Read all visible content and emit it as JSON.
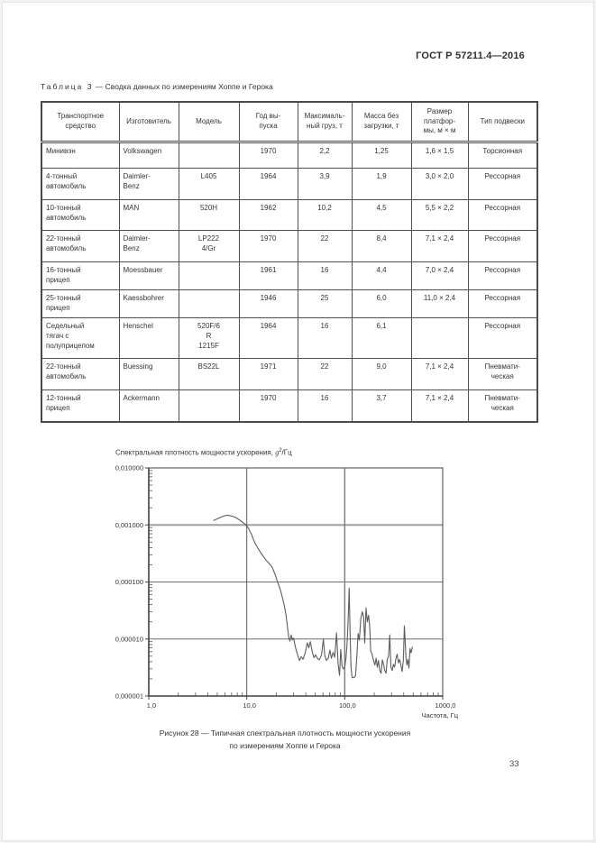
{
  "page": {
    "header": "ГОСТ Р 57211.4—2016",
    "page_number": "33"
  },
  "table": {
    "title_label": "Таблица 3",
    "title_rest": "— Сводка данных по измерениям Хоппе и Герока",
    "columns": [
      "Транспортное\nсредство",
      "Изготовитель",
      "Модель",
      "Год вы-\nпуска",
      "Максималь-\nный груз, т",
      "Масса без\nзагрузки, т",
      "Размер\nплатфор-\nмы, м × м",
      "Тип подвески"
    ],
    "rows": [
      [
        "Минивэн",
        "Volkswagen",
        "",
        "1970",
        "2,2",
        "1,25",
        "1,6 × 1,5",
        "Торсионная"
      ],
      [
        "4-тонный\nавтомобиль",
        "Daimler-\nBenz",
        "L405",
        "1964",
        "3,9",
        "1,9",
        "3,0 × 2,0",
        "Рессорная"
      ],
      [
        "10-тонный\nавтомобиль",
        "MAN",
        "520H",
        "1962",
        "10,2",
        "4,5",
        "5,5 × 2,2",
        "Рессорная"
      ],
      [
        "22-тонный\nавтомобиль",
        "Daimler-\nBenz",
        "LP222\n4/Gr",
        "1970",
        "22",
        "8,4",
        "7,1 × 2,4",
        "Рессорная"
      ],
      [
        "16-тонный\nприцеп",
        "Moessbauer",
        "",
        "1961",
        "16",
        "4,4",
        "7,0 × 2,4",
        "Рессорная"
      ],
      [
        "25-тонный\nприцеп",
        "Kaessbohrer",
        "",
        "1946",
        "25",
        "6,0",
        "11,0 × 2,4",
        "Рессорная"
      ],
      [
        "Седельный\nтягач с\nполуприцепом",
        "Henschel",
        "520F/6\nR\n1215F",
        "1964",
        "16",
        "6,1",
        "",
        "Рессорная"
      ],
      [
        "22-тонный\nавтомобиль",
        "Buessing",
        "BS22L",
        "1971",
        "22",
        "9,0",
        "7,1 × 2,4",
        "Пневмати-\nческая"
      ],
      [
        "12-тонный\nприцеп",
        "Ackermann",
        "",
        "1970",
        "16",
        "3,7",
        "7,1 × 2,4",
        "Пневмати-\nческая"
      ]
    ]
  },
  "chart_data": {
    "type": "line",
    "title": "Спектральная плотность мощности ускорения, g2/Гц",
    "title_parts": {
      "prefix": "Спектральная плотность мощности ускорения, ",
      "var": "g",
      "sup": "2",
      "suffix": "/Гц"
    },
    "xlabel": "Частота, Гц",
    "ylabel": "",
    "x_scale": "log",
    "y_scale": "log",
    "xlim": [
      1,
      1000
    ],
    "ylim": [
      1e-06,
      0.01
    ],
    "grid": true,
    "x_ticks": [
      {
        "label": "1,0",
        "value": 1
      },
      {
        "label": "10,0",
        "value": 10
      },
      {
        "label": "100,0",
        "value": 100
      },
      {
        "label": "1000,0",
        "value": 1000
      }
    ],
    "y_ticks": [
      {
        "label": "0,010000",
        "value": 0.01
      },
      {
        "label": "0,001000",
        "value": 0.001
      },
      {
        "label": "0,000100",
        "value": 0.0001
      },
      {
        "label": "0,000010",
        "value": 1e-05
      },
      {
        "label": "0,000001",
        "value": 1e-06
      }
    ],
    "series": [
      {
        "name": "Спектральная плотность мощности ускорения",
        "points": [
          [
            4.6,
            0.0012
          ],
          [
            5.0,
            0.00128
          ],
          [
            5.5,
            0.00138
          ],
          [
            6.0,
            0.00146
          ],
          [
            6.5,
            0.00148
          ],
          [
            7.0,
            0.00143
          ],
          [
            7.6,
            0.00137
          ],
          [
            8.2,
            0.00126
          ],
          [
            9.0,
            0.00113
          ],
          [
            9.6,
            0.00103
          ],
          [
            10.0,
            0.00096
          ],
          [
            10.4,
            0.00088
          ],
          [
            10.8,
            0.00077
          ],
          [
            11.2,
            0.00068
          ],
          [
            11.5,
            0.0006
          ],
          [
            11.9,
            0.00052
          ],
          [
            12.3,
            0.00046
          ],
          [
            12.8,
            0.00041
          ],
          [
            13.4,
            0.00036
          ],
          [
            14.2,
            0.00031
          ],
          [
            15.0,
            0.00027
          ],
          [
            15.8,
            0.00024
          ],
          [
            16.6,
            0.00022
          ],
          [
            17.4,
            0.0002
          ],
          [
            18.2,
            0.00018
          ],
          [
            19.0,
            0.00015
          ],
          [
            19.8,
            0.000125
          ],
          [
            20.6,
            0.0001
          ],
          [
            21.5,
            8.2e-05
          ],
          [
            22.4,
            6.6e-05
          ],
          [
            23.3,
            5e-05
          ],
          [
            24.2,
            3.8e-05
          ],
          [
            25.1,
            2.7e-05
          ],
          [
            26.0,
            1.65e-05
          ],
          [
            26.8,
            1.08e-05
          ],
          [
            27.6,
            9.2e-06
          ],
          [
            28.4,
            1.18e-05
          ],
          [
            29.2,
            9.6e-06
          ],
          [
            30.0,
            1.04e-05
          ],
          [
            31.5,
            7e-06
          ],
          [
            33.0,
            5.3e-06
          ],
          [
            34.5,
            4.2e-06
          ],
          [
            36.0,
            4.9e-06
          ],
          [
            37.5,
            4.4e-06
          ],
          [
            39.5,
            5.7e-06
          ],
          [
            41.5,
            8.6e-06
          ],
          [
            43.0,
            7e-06
          ],
          [
            44.5,
            9e-06
          ],
          [
            46.5,
            6.1e-06
          ],
          [
            48.5,
            4.7e-06
          ],
          [
            50.5,
            5.3e-06
          ],
          [
            52.5,
            4.6e-06
          ],
          [
            55.0,
            4.3e-06
          ],
          [
            58.0,
            5.3e-06
          ],
          [
            60.5,
            1e-05
          ],
          [
            62.5,
            5.2e-06
          ],
          [
            65.0,
            4.2e-06
          ],
          [
            68.0,
            4.6e-06
          ],
          [
            70.5,
            6.4e-06
          ],
          [
            73.0,
            4.6e-06
          ],
          [
            76.0,
            5.8e-06
          ],
          [
            79.0,
            4.8e-06
          ],
          [
            82.5,
            1.28e-05
          ],
          [
            85.5,
            3.7e-06
          ],
          [
            88.5,
            2.3e-06
          ],
          [
            91.0,
            6.6e-06
          ],
          [
            94.0,
            3.3e-06
          ],
          [
            97.0,
            3e-06
          ],
          [
            100.0,
            3.2e-06
          ],
          [
            103.0,
            4.6e-06
          ],
          [
            106.0,
            9e-06
          ],
          [
            109.0,
            2.9e-05
          ],
          [
            111.0,
            7.8e-05
          ],
          [
            113.5,
            1.2e-05
          ],
          [
            116.0,
            3.1e-06
          ],
          [
            119.0,
            2.1e-06
          ],
          [
            124.0,
            2.1e-06
          ],
          [
            129.0,
            2.3e-06
          ],
          [
            133.0,
            5e-06
          ],
          [
            137.0,
            1.25e-05
          ],
          [
            141.0,
            9.6e-06
          ],
          [
            146.0,
            2.3e-05
          ],
          [
            151.0,
            3e-05
          ],
          [
            156.0,
            2.4e-05
          ],
          [
            160.0,
            8.5e-06
          ],
          [
            165.0,
            3.5e-05
          ],
          [
            170.0,
            2e-05
          ],
          [
            175.0,
            2.6e-05
          ],
          [
            180.0,
            1.6e-05
          ],
          [
            184.0,
            6.2e-06
          ],
          [
            190.0,
            5.4e-06
          ],
          [
            197.0,
            4.2e-06
          ],
          [
            203.0,
            3.5e-06
          ],
          [
            209.0,
            4.6e-06
          ],
          [
            215.0,
            3.2e-06
          ],
          [
            221.0,
            4.2e-06
          ],
          [
            228.0,
            2.8e-06
          ],
          [
            235.0,
            2.5e-06
          ],
          [
            242.0,
            4.3e-06
          ],
          [
            249.0,
            3.6e-06
          ],
          [
            256.0,
            2.8e-06
          ],
          [
            264.0,
            2.5e-06
          ],
          [
            272.0,
            4.5e-06
          ],
          [
            280.0,
            4.9e-06
          ],
          [
            288.0,
            1.18e-05
          ],
          [
            296.0,
            3.2e-06
          ],
          [
            305.0,
            2.8e-06
          ],
          [
            314.0,
            3.6e-06
          ],
          [
            323.0,
            3.2e-06
          ],
          [
            333.0,
            4.6e-06
          ],
          [
            343.0,
            5.4e-06
          ],
          [
            353.0,
            3.8e-06
          ],
          [
            364.0,
            4.4e-06
          ],
          [
            375.0,
            3.4e-06
          ],
          [
            386.0,
            2.7e-06
          ],
          [
            397.0,
            4.4e-06
          ],
          [
            406.0,
            1.7e-05
          ],
          [
            413.0,
            1e-05
          ],
          [
            421.0,
            4.8e-06
          ],
          [
            431.0,
            3.5e-06
          ],
          [
            441.0,
            4.4e-06
          ],
          [
            452.0,
            3.1e-06
          ],
          [
            464.0,
            6.8e-06
          ],
          [
            476.0,
            5.7e-06
          ],
          [
            490.0,
            7.2e-06
          ]
        ]
      }
    ],
    "caption_line1": "Рисунок 28 — Типичная спектральная плотность мощности ускорения",
    "caption_line2": "по измерениям Хоппе и Герока"
  }
}
